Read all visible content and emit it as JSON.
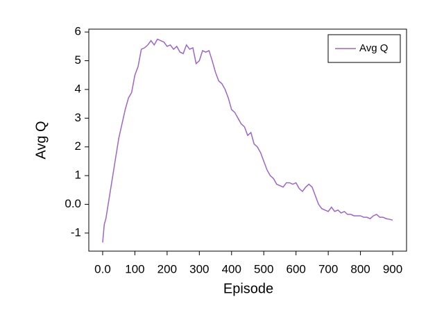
{
  "chart_data": {
    "type": "line",
    "xlabel": "Episode",
    "ylabel": "Avg Q",
    "x": [
      0,
      5,
      10,
      20,
      30,
      40,
      50,
      60,
      70,
      80,
      90,
      100,
      110,
      120,
      130,
      140,
      150,
      160,
      170,
      180,
      190,
      200,
      210,
      220,
      230,
      240,
      250,
      260,
      270,
      280,
      290,
      300,
      310,
      320,
      330,
      340,
      350,
      360,
      370,
      380,
      390,
      400,
      410,
      420,
      430,
      440,
      450,
      460,
      470,
      480,
      490,
      500,
      510,
      520,
      530,
      540,
      550,
      560,
      570,
      580,
      590,
      600,
      610,
      620,
      630,
      640,
      650,
      660,
      670,
      680,
      690,
      700,
      710,
      720,
      730,
      740,
      750,
      760,
      770,
      780,
      790,
      800,
      810,
      820,
      830,
      840,
      850,
      860,
      870,
      880,
      890,
      900
    ],
    "series": [
      {
        "name": "Avg Q",
        "color": "#9966cc",
        "values": [
          -1.33,
          -0.7,
          -0.5,
          0.2,
          0.9,
          1.6,
          2.3,
          2.8,
          3.3,
          3.7,
          3.9,
          4.5,
          4.8,
          5.4,
          5.45,
          5.55,
          5.7,
          5.55,
          5.75,
          5.7,
          5.65,
          5.5,
          5.55,
          5.4,
          5.5,
          5.3,
          5.25,
          5.55,
          5.4,
          5.45,
          4.9,
          5.0,
          5.35,
          5.3,
          5.35,
          5.0,
          4.6,
          4.3,
          4.2,
          4.0,
          3.7,
          3.3,
          3.2,
          3.0,
          2.8,
          2.7,
          2.4,
          2.5,
          2.1,
          2.0,
          1.8,
          1.5,
          1.2,
          1.0,
          0.9,
          0.7,
          0.65,
          0.6,
          0.75,
          0.75,
          0.7,
          0.75,
          0.55,
          0.45,
          0.6,
          0.7,
          0.6,
          0.3,
          0.0,
          -0.15,
          -0.2,
          -0.25,
          -0.1,
          -0.25,
          -0.2,
          -0.3,
          -0.25,
          -0.35,
          -0.35,
          -0.4,
          -0.4,
          -0.4,
          -0.45,
          -0.45,
          -0.5,
          -0.4,
          -0.35,
          -0.45,
          -0.45,
          -0.5,
          -0.52,
          -0.55
        ]
      }
    ],
    "xlim": [
      -43,
      943
    ],
    "ylim": [
      -1.63,
      6.1
    ],
    "xticks": [
      {
        "value": 0,
        "label": "0.0"
      },
      100,
      200,
      300,
      400,
      500,
      600,
      700,
      800,
      900
    ],
    "yticks": [
      -1,
      {
        "value": 0,
        "label": "0.0"
      },
      1,
      2,
      3,
      4,
      5,
      6
    ],
    "legend": "upper right"
  }
}
